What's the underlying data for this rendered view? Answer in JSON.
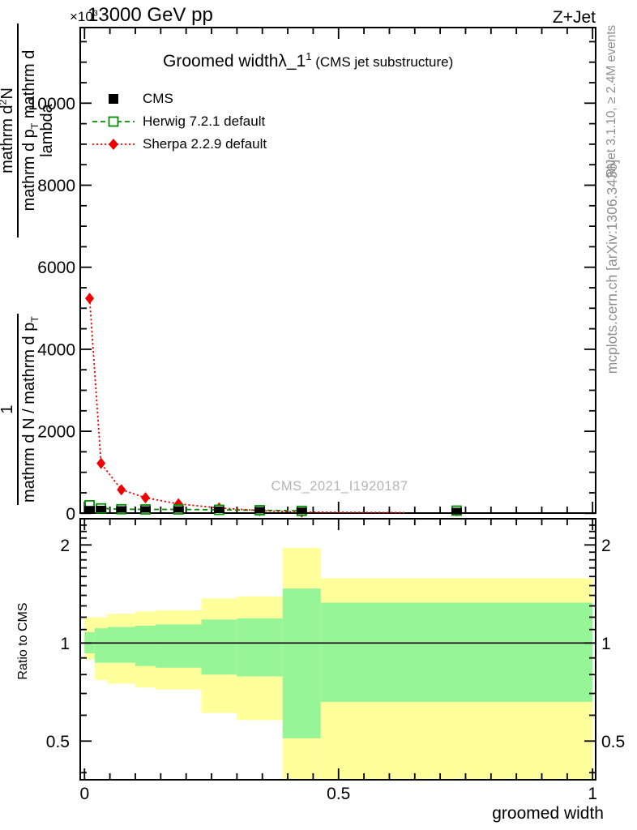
{
  "page": {
    "background": "#ffffff"
  },
  "header": {
    "y_multiplier_base": "×10",
    "y_multiplier_exp": "3",
    "beam_label": "13000 GeV pp",
    "process_label": "Z+Jet"
  },
  "title": {
    "segments": [
      [
        "Groomed width",
        ""
      ],
      [
        "λ_1",
        ""
      ],
      [
        "1",
        "sup"
      ],
      [
        " (CMS jet substructure)",
        "small"
      ]
    ]
  },
  "legend": {
    "entries": [
      {
        "label": "CMS",
        "marker": "filled-square",
        "color": "#000000",
        "line_style": "none"
      },
      {
        "label": "Herwig 7.2.1 default",
        "marker": "open-square",
        "color": "#008f00",
        "line_style": "dashed"
      },
      {
        "label": "Sherpa 2.2.9 default",
        "marker": "filled-diamond",
        "color": "#ee0000",
        "line_style": "dotted"
      }
    ]
  },
  "watermark": {
    "text": "CMS_2021_I1920187",
    "color": "#b4b4b4"
  },
  "side_notes": {
    "top": "Rivet 3.1.10, ≥ 2.4M events",
    "bottom": "mcplots.cern.ch [arXiv:1306.3436]",
    "color": "#8f8f8f"
  },
  "ylabel": {
    "upper_num": [
      [
        "mathrm d",
        ""
      ],
      [
        "2",
        "sup"
      ],
      [
        "N",
        ""
      ]
    ],
    "upper_den": [
      [
        "mathrm d p",
        ""
      ],
      [
        "T",
        "sub"
      ],
      [
        " mathrm d lambda",
        ""
      ]
    ],
    "lower_num": [
      [
        "1",
        ""
      ]
    ],
    "lower_den": [
      [
        "mathrm d N / mathrm d p",
        ""
      ],
      [
        "T",
        "sub"
      ]
    ]
  },
  "ratio_label": "Ratio to CMS",
  "xlabel": "groomed width",
  "chart_data": {
    "type": "line",
    "title": "Groomed width λ_1^1 (CMS jet substructure)",
    "xlabel": "groomed width",
    "ylabel": "1 / (dN/dp_T) · d^2N / (dp_T dlambda)  [×10^3]",
    "x": [
      0.01,
      0.0325,
      0.0725,
      0.12,
      0.185,
      0.265,
      0.345,
      0.4275,
      0.7325
    ],
    "series": [
      {
        "name": "CMS",
        "marker": "filled-square",
        "color": "#000000",
        "values": [
          100,
          105,
          95,
          95,
          95,
          85,
          75,
          60,
          55
        ]
      },
      {
        "name": "Herwig 7.2.1 default",
        "marker": "open-square",
        "color": "#008f00",
        "values": [
          195,
          120,
          100,
          95,
          95,
          85,
          75,
          60,
          65
        ]
      },
      {
        "name": "Sherpa 2.2.9 default",
        "marker": "filled-diamond",
        "color": "#ee0000",
        "values": [
          5240,
          1220,
          575,
          380,
          230,
          130,
          65,
          30,
          60
        ]
      }
    ],
    "sherpa_tail": {
      "x": 0.63,
      "y": 15
    },
    "main_axis": {
      "y_major_ticks": [
        0,
        2000,
        4000,
        6000,
        8000,
        10000
      ],
      "y_minor_step": 500,
      "y_max": 11840,
      "y_multiplier": "×10^3",
      "x_range": [
        0,
        1
      ],
      "x_major_ticks": [
        0,
        0.5,
        1
      ],
      "x_minor_step": 0.05,
      "grid": false
    },
    "ratio_axis": {
      "scale": "log",
      "y_range": [
        0.38,
        2.4
      ],
      "y_major_ticks": [
        0.5,
        1,
        2
      ],
      "y_minor_ticks": [
        0.4,
        0.6,
        0.7,
        0.8,
        0.9,
        1.1,
        1.2,
        1.3,
        1.4,
        1.5,
        1.6,
        1.7,
        1.8,
        1.9,
        2.1,
        2.2,
        2.3,
        2.4
      ],
      "unity_line": 1
    },
    "ratio_bands": {
      "bin_edges": [
        0,
        0.02,
        0.045,
        0.1,
        0.14,
        0.23,
        0.3,
        0.39,
        0.465,
        1.0
      ],
      "yellow_hi": [
        1.2,
        1.2,
        1.23,
        1.25,
        1.26,
        1.37,
        1.39,
        1.96,
        1.58
      ],
      "yellow_lo": [
        0.89,
        0.77,
        0.75,
        0.73,
        0.72,
        0.61,
        0.58,
        0.36,
        0.36
      ],
      "green_hi": [
        1.08,
        1.11,
        1.12,
        1.13,
        1.14,
        1.18,
        1.19,
        1.47,
        1.33
      ],
      "green_lo": [
        0.93,
        0.87,
        0.87,
        0.85,
        0.84,
        0.8,
        0.79,
        0.51,
        0.66
      ],
      "yellow_color": "#ffff9b",
      "green_color": "#96f596"
    }
  }
}
